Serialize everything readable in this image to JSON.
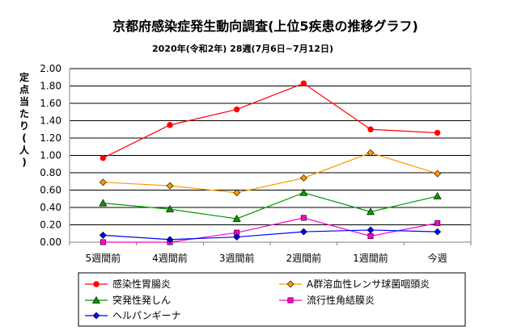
{
  "chart_data": {
    "type": "line",
    "title": "京都府感染症発生動向調査(上位5疾患の推移グラフ)",
    "subtitle": "2020年(令和2年) 28週(7月6日~7月12日)",
    "ylabel": "定点当たり(人)",
    "categories": [
      "5週間前",
      "4週間前",
      "3週間前",
      "2週間前",
      "1週間前",
      "今週"
    ],
    "ylim": [
      0,
      2.0
    ],
    "yticks": [
      "0.00",
      "0.20",
      "0.40",
      "0.60",
      "0.80",
      "1.00",
      "1.20",
      "1.40",
      "1.60",
      "1.80",
      "2.00"
    ],
    "grid": true,
    "legend_position": "bottom",
    "series": [
      {
        "name": "感染性胃腸炎",
        "color": "#ff0000",
        "marker": "circle",
        "values": [
          0.97,
          1.35,
          1.53,
          1.83,
          1.3,
          1.26
        ]
      },
      {
        "name": "A群溶血性レンサ球菌咽頭炎",
        "color": "#ff9900",
        "marker": "diamond",
        "values": [
          0.69,
          0.65,
          0.57,
          0.74,
          1.03,
          0.79
        ]
      },
      {
        "name": "突発性発しん",
        "color": "#009900",
        "marker": "triangle",
        "values": [
          0.45,
          0.38,
          0.27,
          0.57,
          0.35,
          0.53
        ]
      },
      {
        "name": "流行性角結膜炎",
        "color": "#ff00cc",
        "marker": "square",
        "values": [
          0.0,
          0.0,
          0.11,
          0.28,
          0.07,
          0.22
        ]
      },
      {
        "name": "ヘルパンギーナ",
        "color": "#0000ff",
        "marker": "diamond",
        "values": [
          0.08,
          0.03,
          0.06,
          0.12,
          0.14,
          0.12
        ]
      }
    ]
  }
}
